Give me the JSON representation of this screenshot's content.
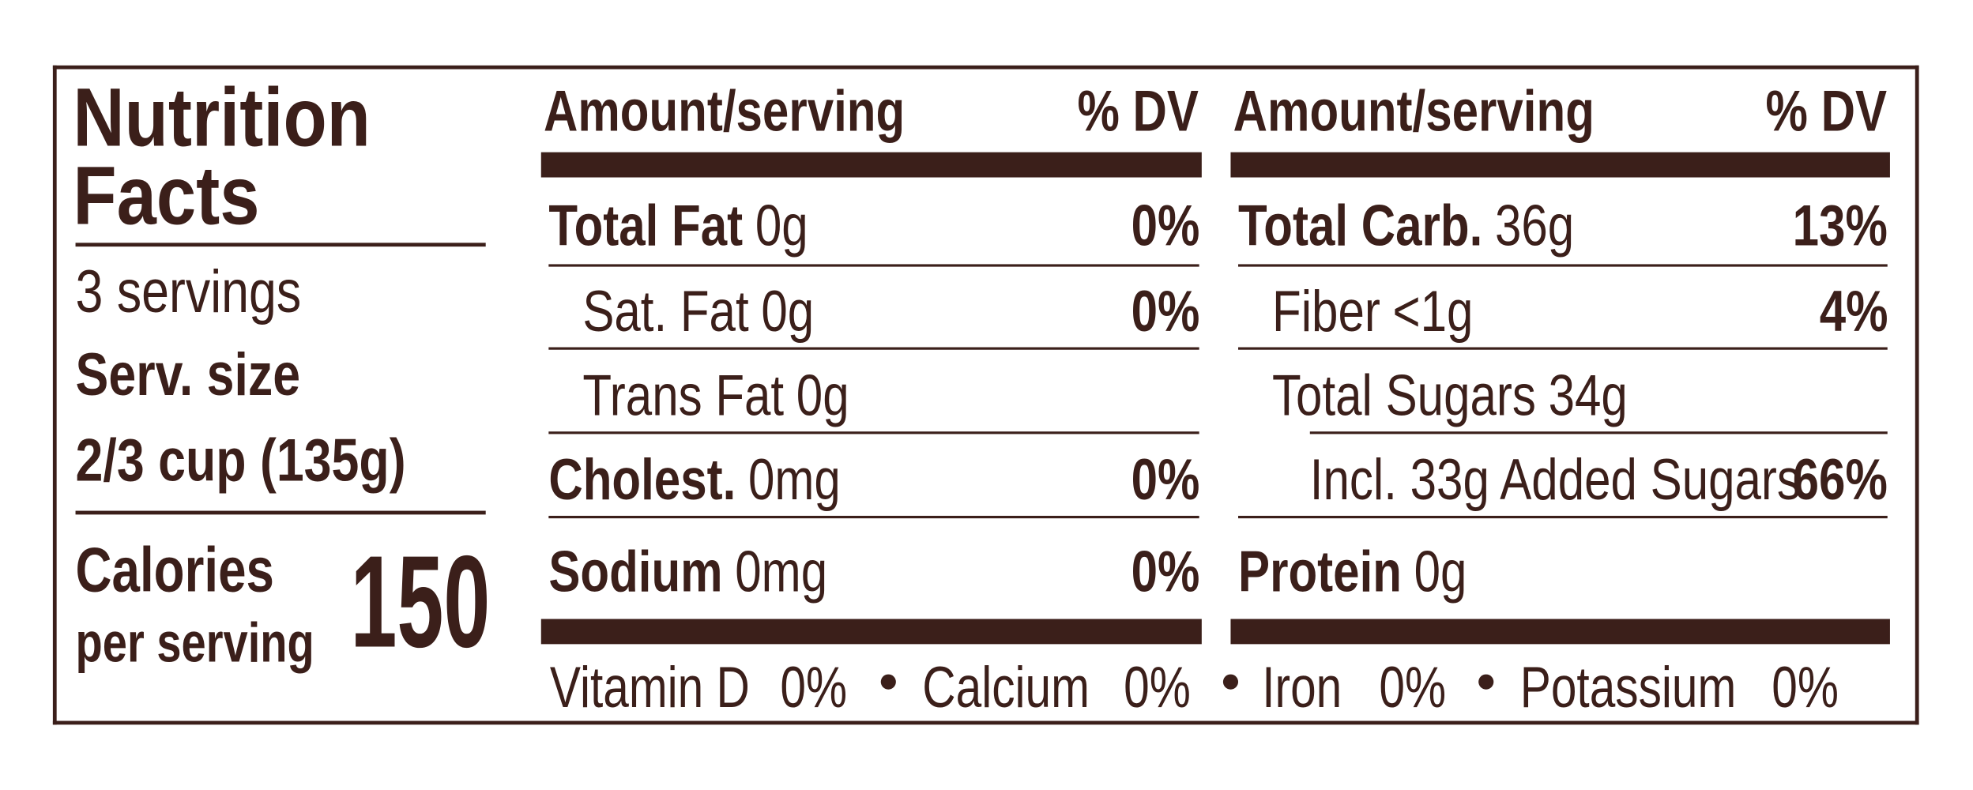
{
  "title_line1": "Nutrition",
  "title_line2": "Facts",
  "servings": "3 servings",
  "serving_size_label": "Serv. size",
  "serving_size": "2/3 cup (135g)",
  "calories_line1": "Calories",
  "calories_line2": "per serving",
  "calories": 150,
  "columns": [
    {
      "header_amount": "Amount/serving",
      "header_dv": "% DV",
      "rows": [
        {
          "name": "Total Fat",
          "amount": "0g",
          "dv": "0%",
          "bold": true,
          "indent": 0
        },
        {
          "name": "Sat. Fat",
          "amount": "0g",
          "dv": "0%",
          "bold": false,
          "indent": 1
        },
        {
          "name": "Trans Fat",
          "amount": "0g",
          "bold": false,
          "indent": 1
        },
        {
          "name": "Cholest.",
          "amount": "0mg",
          "dv": "0%",
          "bold": true,
          "indent": 0
        },
        {
          "name": "Sodium",
          "amount": "0mg",
          "dv": "0%",
          "bold": true,
          "indent": 0
        }
      ]
    },
    {
      "header_amount": "Amount/serving",
      "header_dv": "% DV",
      "rows": [
        {
          "name": "Total Carb.",
          "amount": "36g",
          "dv": "13%",
          "bold": true,
          "indent": 0
        },
        {
          "name": "Fiber",
          "amount": "<1g",
          "dv": "4%",
          "bold": false,
          "indent": 1
        },
        {
          "name": "Total Sugars",
          "amount": "34g",
          "bold": false,
          "indent": 1
        },
        {
          "name": "Incl. 33g Added Sugars",
          "dv": "66%",
          "bold": false,
          "indent": 2
        },
        {
          "name": "Protein",
          "amount": "0g",
          "bold": true,
          "indent": 0
        }
      ]
    }
  ],
  "footer": [
    {
      "name": "Vitamin D",
      "dv": "0%"
    },
    {
      "name": "Calcium",
      "dv": "0%"
    },
    {
      "name": "Iron",
      "dv": "0%"
    },
    {
      "name": "Potassium",
      "dv": "0%"
    }
  ]
}
